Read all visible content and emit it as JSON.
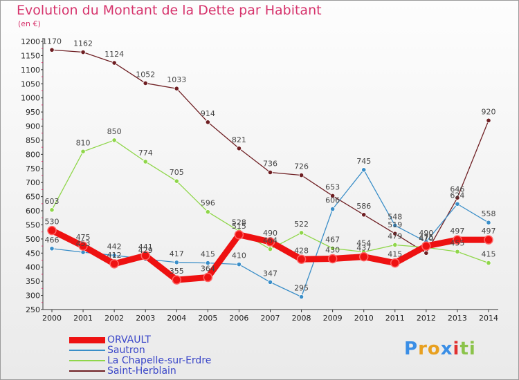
{
  "header": {
    "title": "Evolution du Montant de la Dette par Habitant",
    "subtitle": "(en €)"
  },
  "logo": {
    "text": "Proxiti",
    "letters": [
      "P",
      "r",
      "o",
      "x",
      "i",
      "t",
      "i"
    ],
    "colors": [
      "#3a8ee6",
      "#e8a020",
      "#e8a020",
      "#3a8ee6",
      "#e03030",
      "#8bc34a",
      "#8bc34a"
    ]
  },
  "chart_data": {
    "type": "line",
    "title": "Evolution du Montant de la Dette par Habitant",
    "ylabel": "(en €)",
    "xlabel": "",
    "x": [
      "2000",
      "2001",
      "2002",
      "2003",
      "2004",
      "2005",
      "2006",
      "2007",
      "2008",
      "2009",
      "2010",
      "2011",
      "2012",
      "2013",
      "2014"
    ],
    "ylim": [
      250,
      1200
    ],
    "ytick_step": 50,
    "grid": false,
    "legend_position": "bottom-left",
    "series": [
      {
        "name": "ORVAULT",
        "color": "#ee1111",
        "values": [
          530,
          475,
          412,
          441,
          355,
          364,
          515,
          490,
          428,
          430,
          437,
          415,
          475,
          497,
          497
        ],
        "labels": [
          "530",
          "475",
          "412",
          "441",
          "355",
          "364",
          "515",
          "490",
          "428",
          "430",
          "437",
          "415",
          "475",
          "497",
          "497"
        ]
      },
      {
        "name": "Sautron",
        "color": "#3a8ec8",
        "values": [
          466,
          453,
          442,
          429,
          417,
          415,
          410,
          347,
          295,
          606,
          745,
          548,
          490,
          624,
          558
        ],
        "labels": [
          "466",
          "453",
          "442",
          "429",
          "417",
          "415",
          "410",
          "347",
          "295",
          "606",
          "745",
          "548",
          "490",
          "624",
          "558"
        ]
      },
      {
        "name": "La Chapelle-sur-Erdre",
        "color": "#8fd64a",
        "values": [
          603,
          810,
          850,
          774,
          705,
          596,
          528,
          464,
          522,
          467,
          454,
          479,
          470,
          455,
          415
        ],
        "labels": [
          "603",
          "810",
          "850",
          "774",
          "705",
          "596",
          "528",
          "464",
          "522",
          "467",
          "454",
          "479",
          "470",
          "455",
          "415"
        ]
      },
      {
        "name": "Saint-Herblain",
        "color": "#6e1e22",
        "values": [
          1170,
          1162,
          1124,
          1052,
          1033,
          914,
          821,
          736,
          726,
          653,
          586,
          519,
          450,
          646,
          920
        ],
        "labels": [
          "1170",
          "1162",
          "1124",
          "1052",
          "1033",
          "914",
          "821",
          "736",
          "726",
          "653",
          "586",
          "519",
          "",
          "646",
          "920"
        ]
      }
    ]
  }
}
